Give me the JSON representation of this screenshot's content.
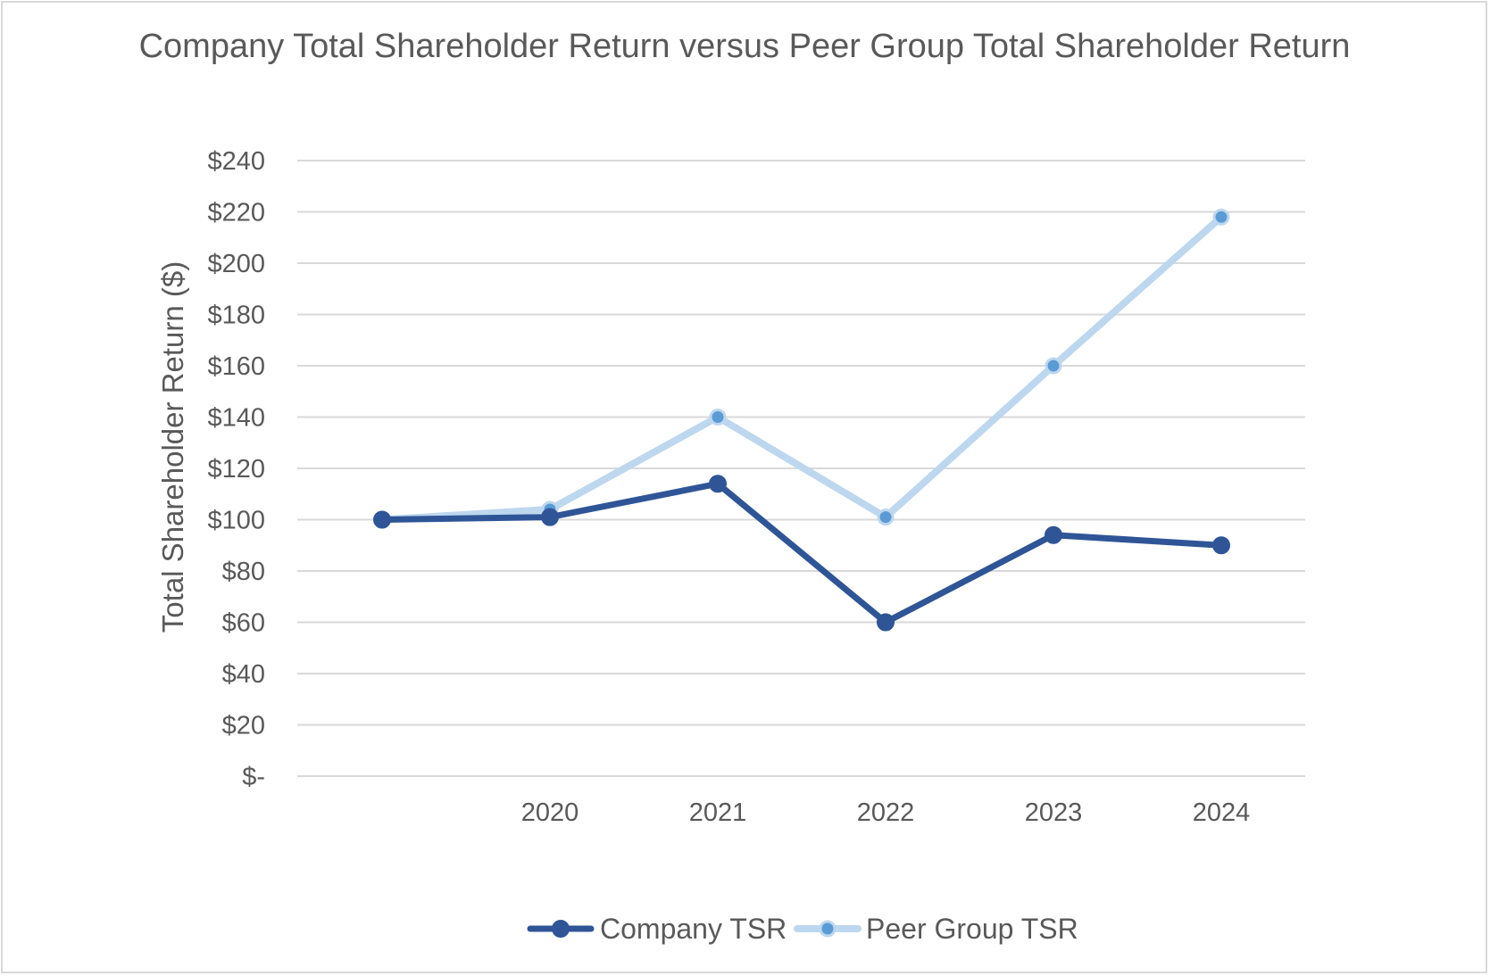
{
  "chart_data": {
    "type": "line",
    "title": "Company Total Shareholder Return versus Peer Group Total Shareholder Return",
    "xlabel": "",
    "ylabel": "Total Shareholder Return ($)",
    "categories": [
      "",
      "2020",
      "2021",
      "2022",
      "2023",
      "2024"
    ],
    "series": [
      {
        "name": "Company TSR",
        "color": "#2f5597",
        "marker_color": "#2f5597",
        "values": [
          100,
          101,
          114,
          60,
          94,
          90
        ]
      },
      {
        "name": "Peer Group TSR",
        "color": "#bdd7ee",
        "marker_color": "#5b9bd5",
        "values": [
          100,
          104,
          140,
          101,
          160,
          218
        ]
      }
    ],
    "ylim": [
      0,
      240
    ],
    "yticks": [
      0,
      20,
      40,
      60,
      80,
      100,
      120,
      140,
      160,
      180,
      200,
      220,
      240
    ],
    "ytick_labels": [
      "$-",
      "$20",
      "$40",
      "$60",
      "$80",
      "$100",
      "$120",
      "$140",
      "$160",
      "$180",
      "$200",
      "$220",
      "$240"
    ],
    "grid": true,
    "legend_position": "bottom"
  }
}
